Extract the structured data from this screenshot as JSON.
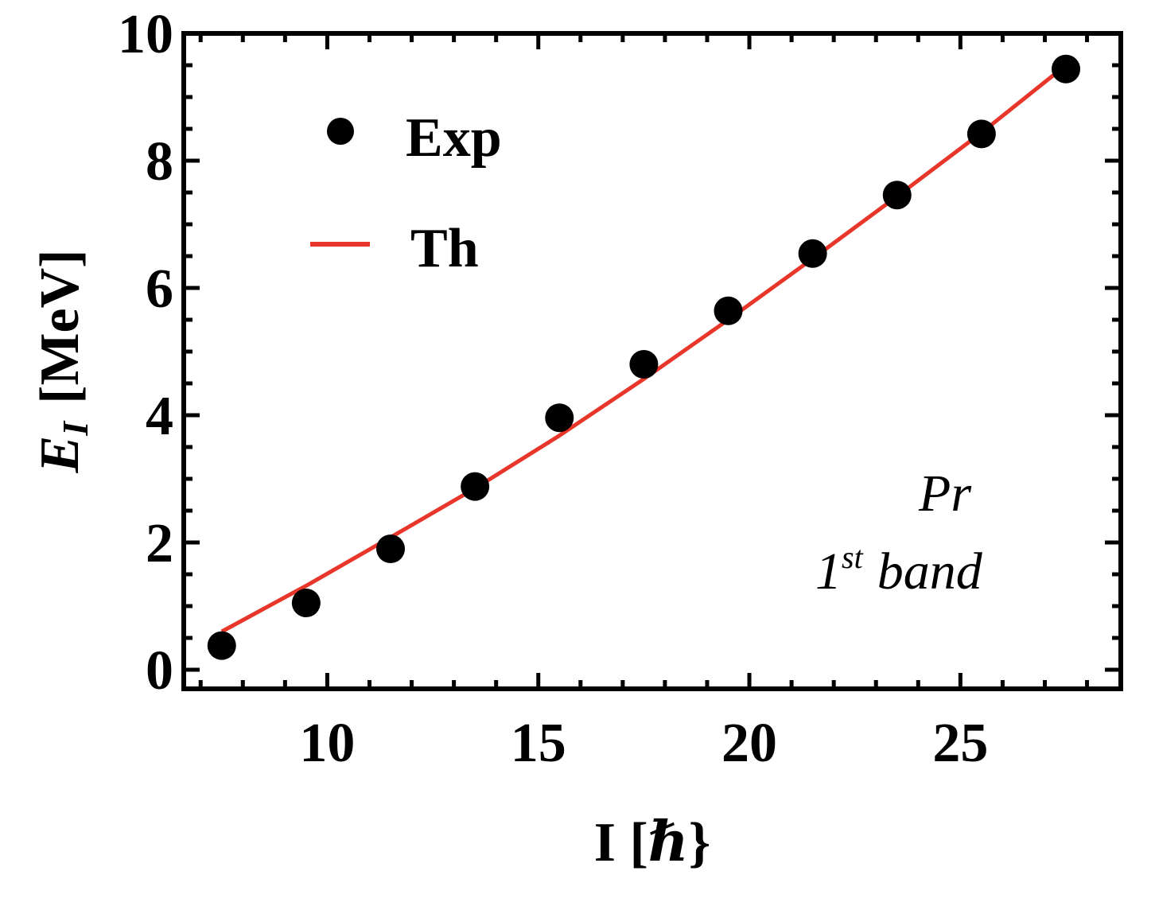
{
  "chart_data": {
    "type": "scatter",
    "xlabel": "I [ℏ}",
    "ylabel_main": "E",
    "ylabel_sub": "I",
    "ylabel_unit": "[MeV]",
    "xlim": [
      6.6,
      28.8
    ],
    "ylim": [
      -0.3,
      10
    ],
    "xticks": [
      10,
      15,
      20,
      25
    ],
    "yticks": [
      0,
      2,
      4,
      6,
      8,
      10
    ],
    "grid": false,
    "legend_placement": "top-left",
    "series": [
      {
        "name": "Exp",
        "kind": "points",
        "color": "#000000",
        "x": [
          7.5,
          9.5,
          11.5,
          13.5,
          15.5,
          17.5,
          19.5,
          21.5,
          23.5,
          25.5,
          27.5
        ],
        "y": [
          0.38,
          1.05,
          1.9,
          2.88,
          3.96,
          4.8,
          5.64,
          6.54,
          7.46,
          8.42,
          9.44
        ]
      },
      {
        "name": "Th",
        "kind": "line",
        "color": "#e8362a",
        "x": [
          7.5,
          9.5,
          11.5,
          13.5,
          15.5,
          17.5,
          19.5,
          21.5,
          23.5,
          25.5,
          27.5
        ],
        "y": [
          0.6,
          1.32,
          2.08,
          2.85,
          3.68,
          4.57,
          5.5,
          6.46,
          7.44,
          8.44,
          9.5
        ]
      }
    ],
    "annotation": {
      "line1": "Pr",
      "line2_main": "1",
      "line2_sup": "st",
      "line2_rest": "band"
    }
  }
}
